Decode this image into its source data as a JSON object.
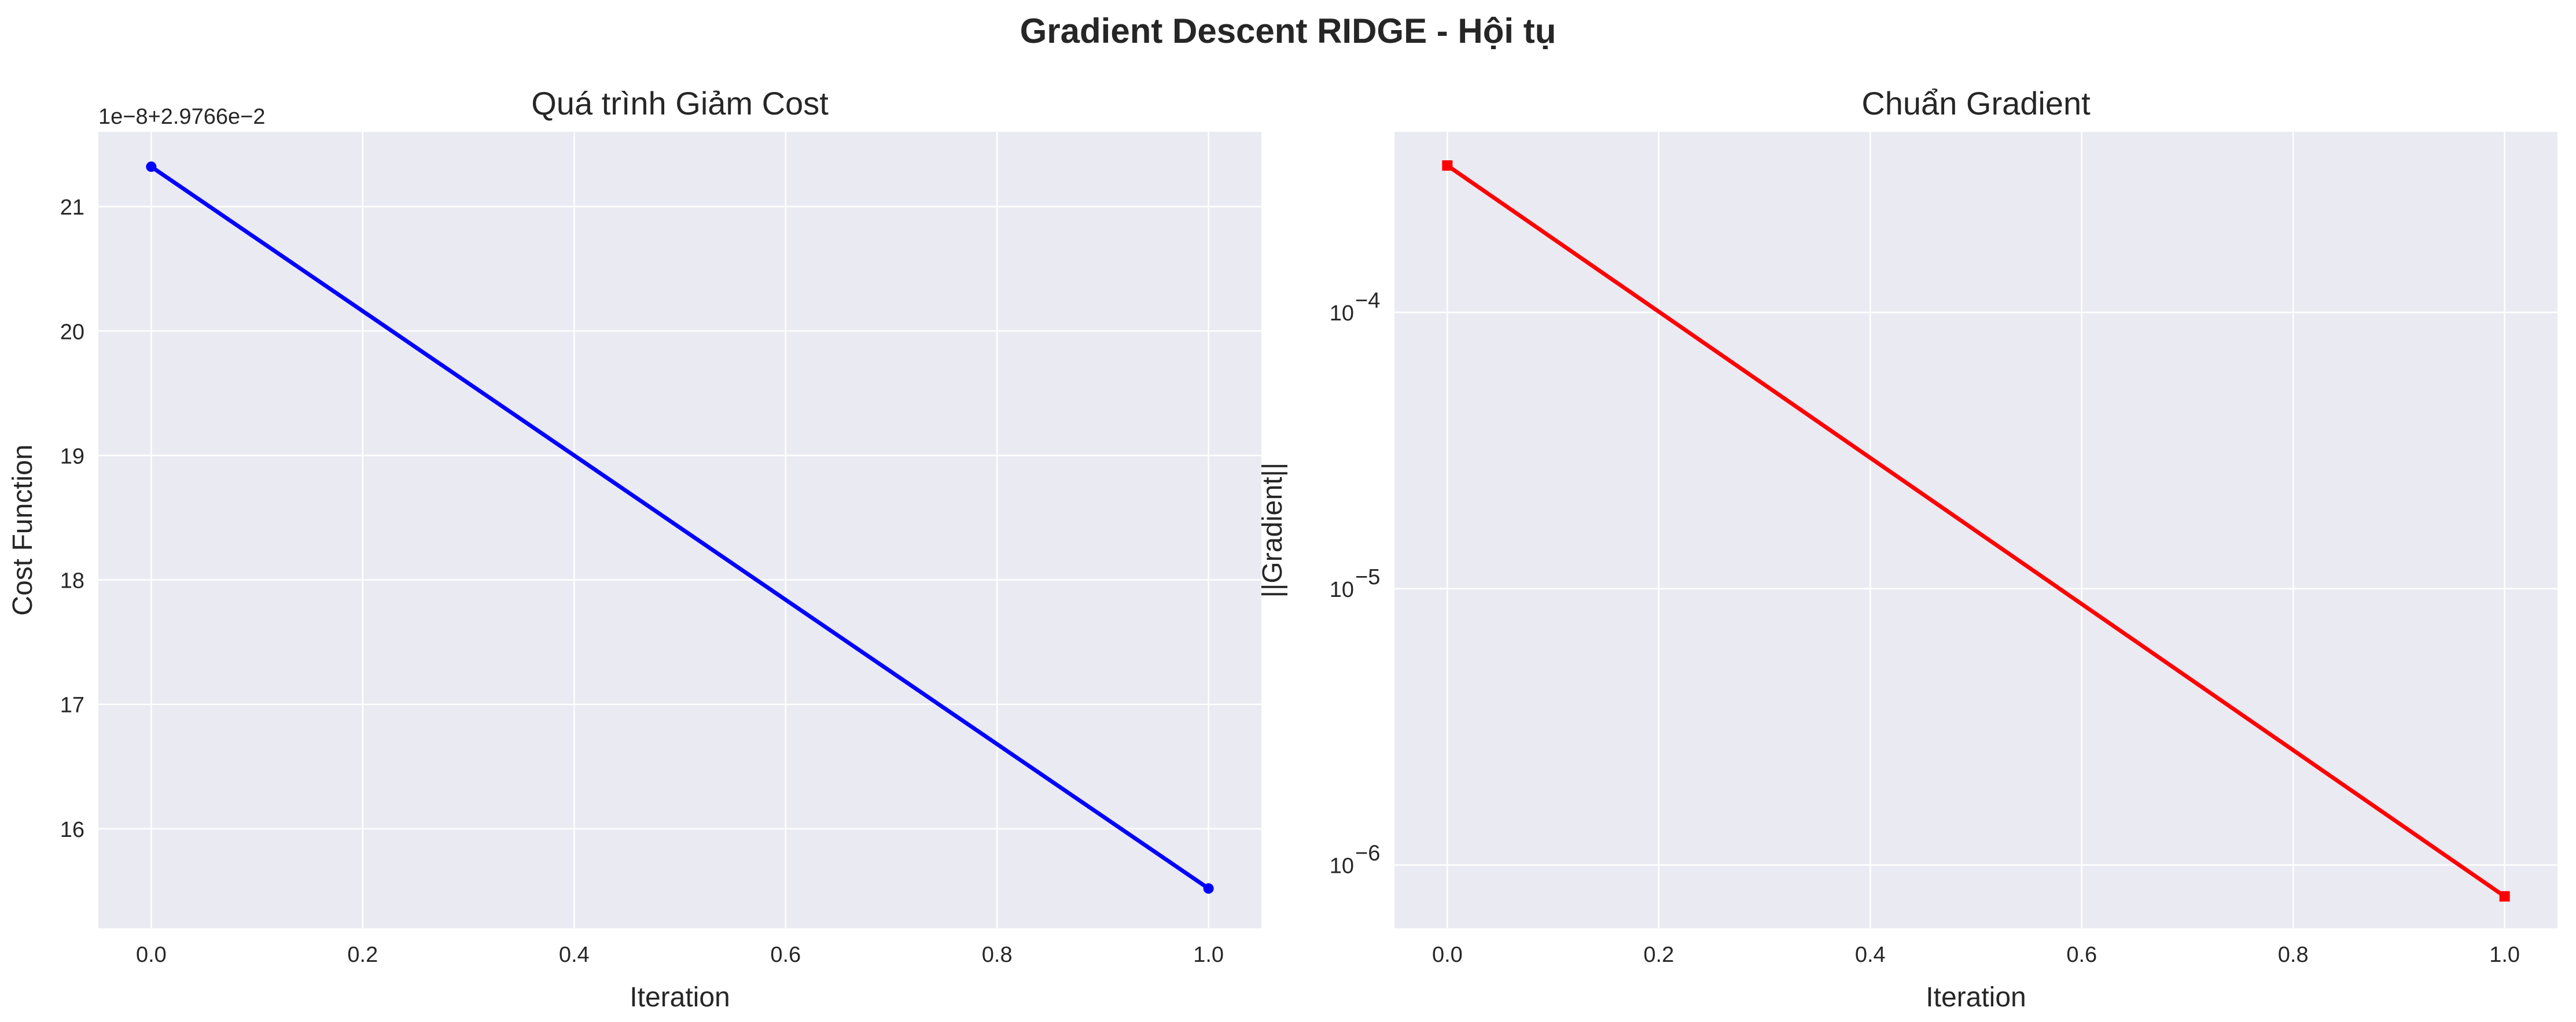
{
  "figure": {
    "title": "Gradient Descent RIDGE - Hội tụ"
  },
  "chart_data": [
    {
      "type": "line",
      "title": "Quá trình Giảm Cost",
      "xlabel": "Iteration",
      "ylabel": "Cost Function",
      "offset_text": "1e−8+2.9766e−2",
      "x": [
        0,
        1
      ],
      "series": [
        {
          "values": [
            21.32,
            15.52
          ],
          "color": "#0000ff",
          "marker": "circle"
        }
      ],
      "xlim": [
        -0.05,
        1.05
      ],
      "ylim": [
        15.2,
        21.6
      ],
      "xticks": [
        0.0,
        0.2,
        0.4,
        0.6,
        0.8,
        1.0
      ],
      "xtick_labels": [
        "0.0",
        "0.2",
        "0.4",
        "0.6",
        "0.8",
        "1.0"
      ],
      "yticks": [
        16,
        17,
        18,
        19,
        20,
        21
      ],
      "ytick_labels": [
        "16",
        "17",
        "18",
        "19",
        "20",
        "21"
      ],
      "yscale": "linear",
      "grid": true,
      "background": "#eaeaf2"
    },
    {
      "type": "line",
      "title": "Chuẩn Gradient",
      "xlabel": "Iteration",
      "ylabel": "||Gradient||",
      "x": [
        0,
        1
      ],
      "series": [
        {
          "values": [
            0.00034,
            7.7e-07
          ],
          "color": "#ff0000",
          "marker": "square"
        }
      ],
      "xlim": [
        -0.05,
        1.05
      ],
      "ylim": [
        5.9e-07,
        0.00045
      ],
      "xticks": [
        0.0,
        0.2,
        0.4,
        0.6,
        0.8,
        1.0
      ],
      "xtick_labels": [
        "0.0",
        "0.2",
        "0.4",
        "0.6",
        "0.8",
        "1.0"
      ],
      "yticks": [
        1e-06,
        1e-05,
        0.0001
      ],
      "ytick_exponents": [
        "−6",
        "−5",
        "−4"
      ],
      "ytick_base": "10",
      "yscale": "log",
      "grid": true,
      "background": "#eaeaf2"
    }
  ]
}
